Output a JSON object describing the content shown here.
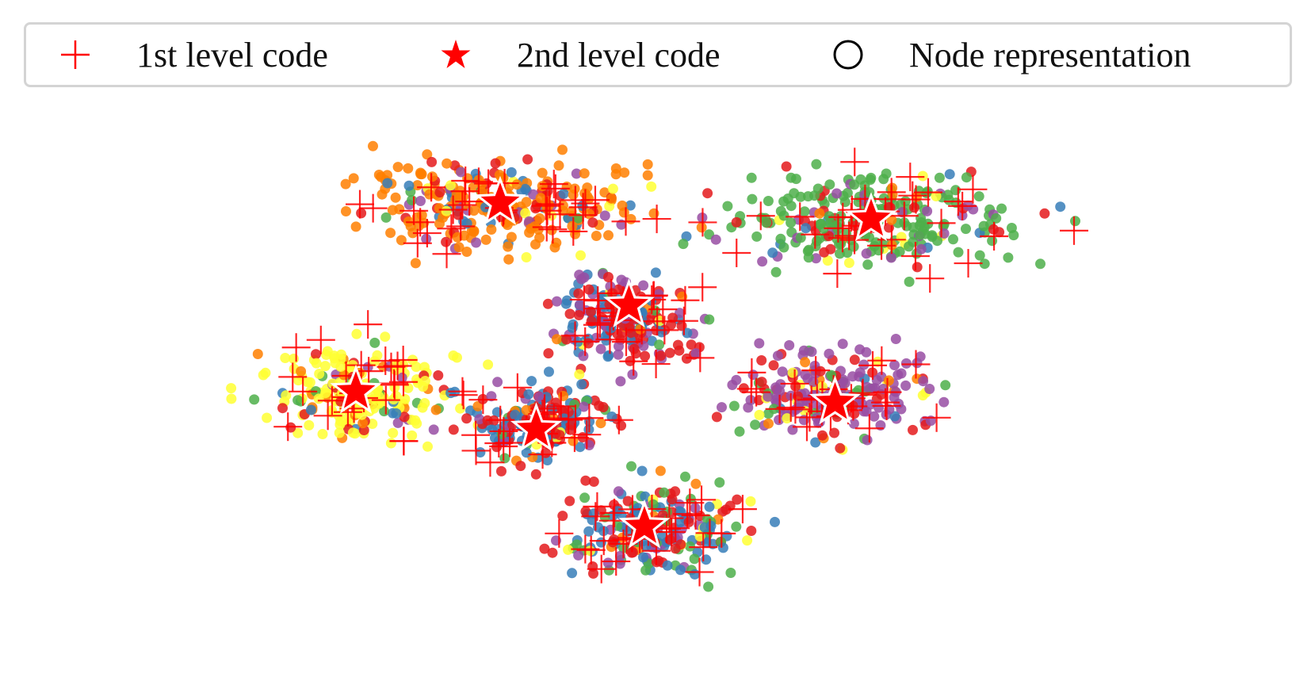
{
  "legend": {
    "plus_label": "1st level code",
    "star_label": "2nd level code",
    "circle_label": "Node representation"
  },
  "chart_data": {
    "type": "scatter",
    "xlabel": "",
    "ylabel": "",
    "axes_visible": false,
    "grid": false,
    "legend_placement": "top",
    "x_range": [
      0,
      1
    ],
    "y_range": [
      0,
      1
    ],
    "colors": {
      "blue": "#377eb8",
      "orange": "#ff7f00",
      "green": "#4daf4a",
      "purple": "#984ea3",
      "red": "#e41a1c",
      "yellow": "#ffff33",
      "code_marker": "#ff0000",
      "star_edge": "#ffffff"
    },
    "clusters": [
      {
        "id": "top-orange",
        "center": [
          0.37,
          0.8
        ],
        "spread": [
          0.14,
          0.085
        ],
        "composition": {
          "orange": 0.66,
          "red": 0.11,
          "blue": 0.09,
          "purple": 0.06,
          "yellow": 0.05,
          "green": 0.03
        },
        "points": 260,
        "first_level_codes": 38,
        "second_level_code": [
          0.37,
          0.8
        ]
      },
      {
        "id": "top-right-green",
        "center": [
          0.73,
          0.77
        ],
        "spread": [
          0.14,
          0.09
        ],
        "composition": {
          "green": 0.68,
          "purple": 0.1,
          "red": 0.09,
          "blue": 0.06,
          "yellow": 0.04,
          "orange": 0.03
        },
        "points": 250,
        "first_level_codes": 36,
        "second_level_code": [
          0.73,
          0.77
        ]
      },
      {
        "id": "left-yellow",
        "center": [
          0.23,
          0.45
        ],
        "spread": [
          0.09,
          0.085
        ],
        "composition": {
          "yellow": 0.7,
          "orange": 0.09,
          "red": 0.08,
          "purple": 0.06,
          "green": 0.04,
          "blue": 0.03
        },
        "points": 200,
        "first_level_codes": 30,
        "second_level_code": [
          0.23,
          0.45
        ]
      },
      {
        "id": "center-red-purple",
        "center": [
          0.49,
          0.58
        ],
        "spread": [
          0.07,
          0.085
        ],
        "composition": {
          "red": 0.36,
          "purple": 0.27,
          "blue": 0.28,
          "green": 0.04,
          "yellow": 0.03,
          "orange": 0.02
        },
        "points": 190,
        "first_level_codes": 28,
        "second_level_code": [
          0.495,
          0.61
        ]
      },
      {
        "id": "right-purple",
        "center": [
          0.69,
          0.45
        ],
        "spread": [
          0.1,
          0.08
        ],
        "composition": {
          "purple": 0.62,
          "red": 0.14,
          "green": 0.09,
          "blue": 0.06,
          "yellow": 0.05,
          "orange": 0.04
        },
        "points": 200,
        "first_level_codes": 30,
        "second_level_code": [
          0.695,
          0.43
        ]
      },
      {
        "id": "center-bottom-blue-red",
        "center": [
          0.41,
          0.39
        ],
        "spread": [
          0.07,
          0.07
        ],
        "composition": {
          "blue": 0.45,
          "red": 0.35,
          "yellow": 0.07,
          "green": 0.05,
          "purple": 0.05,
          "orange": 0.03
        },
        "points": 160,
        "first_level_codes": 26,
        "second_level_code": [
          0.405,
          0.38
        ]
      },
      {
        "id": "bottom-mixed",
        "center": [
          0.52,
          0.2
        ],
        "spread": [
          0.09,
          0.08
        ],
        "composition": {
          "blue": 0.32,
          "red": 0.28,
          "green": 0.16,
          "purple": 0.12,
          "yellow": 0.08,
          "orange": 0.04
        },
        "points": 200,
        "first_level_codes": 32,
        "second_level_code": [
          0.51,
          0.2
        ]
      }
    ]
  }
}
